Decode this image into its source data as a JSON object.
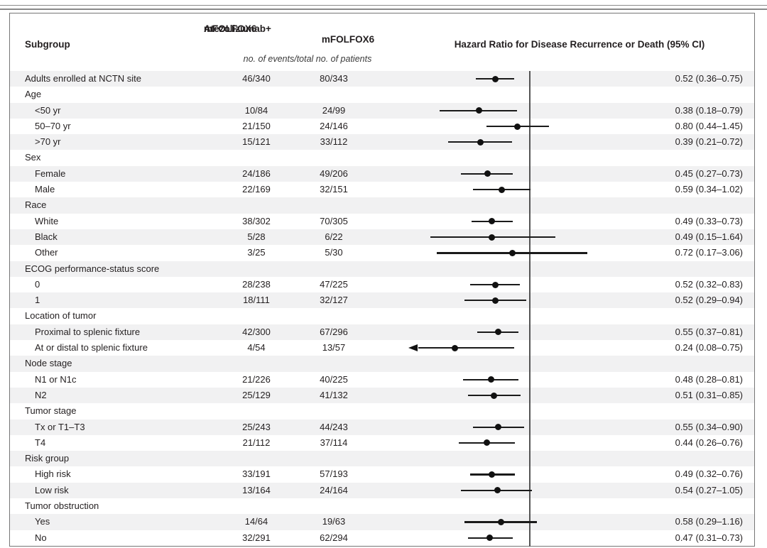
{
  "header": {
    "subgroup_label": "Subgroup",
    "arm1_label_line1": "Atezolizumab+",
    "arm1_label_line2": "mFOLFOX6",
    "arm2_label": "mFOLFOX6",
    "events_note": "no. of events/total no. of patients",
    "hr_axis_title": "Hazard Ratio for Disease Recurrence or Death (95% CI)"
  },
  "colors": {
    "row_shade": "#f1f1f2",
    "text": "#231f20",
    "marker": "#111111",
    "reference_line": "#555555",
    "frame_border": "#767676"
  },
  "chart_data": {
    "type": "forest",
    "x_scale": "log",
    "reference_line_value": 1.0,
    "arms": [
      "Atezolizumab+mFOLFOX6",
      "mFOLFOX6"
    ],
    "value_unit": "no. of events/total no. of patients",
    "effect_measure": "Hazard Ratio for Disease Recurrence or Death (95% CI)",
    "rows": [
      {
        "label": "Adults enrolled at NCTN site",
        "indent": 0,
        "group": false,
        "events_arm1": "46/340",
        "events_arm2": "80/343",
        "hr": 0.52,
        "ci_low": 0.36,
        "ci_high": 0.75,
        "hr_text": "0.52 (0.36–0.75)",
        "shaded": true,
        "clip_left_arrow": false
      },
      {
        "label": "Age",
        "indent": 0,
        "group": true,
        "shaded": false
      },
      {
        "label": "<50 yr",
        "indent": 1,
        "group": false,
        "events_arm1": "10/84",
        "events_arm2": "24/99",
        "hr": 0.38,
        "ci_low": 0.18,
        "ci_high": 0.79,
        "hr_text": "0.38 (0.18–0.79)",
        "shaded": true,
        "clip_left_arrow": false
      },
      {
        "label": "50–70 yr",
        "indent": 1,
        "group": false,
        "events_arm1": "21/150",
        "events_arm2": "24/146",
        "hr": 0.8,
        "ci_low": 0.44,
        "ci_high": 1.45,
        "hr_text": "0.80 (0.44–1.45)",
        "shaded": false,
        "clip_left_arrow": false
      },
      {
        "label": ">70 yr",
        "indent": 1,
        "group": false,
        "events_arm1": "15/121",
        "events_arm2": "33/112",
        "hr": 0.39,
        "ci_low": 0.21,
        "ci_high": 0.72,
        "hr_text": "0.39 (0.21–0.72)",
        "shaded": true,
        "clip_left_arrow": false
      },
      {
        "label": "Sex",
        "indent": 0,
        "group": true,
        "shaded": false
      },
      {
        "label": "Female",
        "indent": 1,
        "group": false,
        "events_arm1": "24/186",
        "events_arm2": "49/206",
        "hr": 0.45,
        "ci_low": 0.27,
        "ci_high": 0.73,
        "hr_text": "0.45 (0.27–0.73)",
        "shaded": true,
        "clip_left_arrow": false
      },
      {
        "label": "Male",
        "indent": 1,
        "group": false,
        "events_arm1": "22/169",
        "events_arm2": "32/151",
        "hr": 0.59,
        "ci_low": 0.34,
        "ci_high": 1.02,
        "hr_text": "0.59 (0.34–1.02)",
        "shaded": false,
        "clip_left_arrow": false
      },
      {
        "label": "Race",
        "indent": 0,
        "group": true,
        "shaded": true
      },
      {
        "label": "White",
        "indent": 1,
        "group": false,
        "events_arm1": "38/302",
        "events_arm2": "70/305",
        "hr": 0.49,
        "ci_low": 0.33,
        "ci_high": 0.73,
        "hr_text": "0.49 (0.33–0.73)",
        "shaded": false,
        "clip_left_arrow": false
      },
      {
        "label": "Black",
        "indent": 1,
        "group": false,
        "events_arm1": "5/28",
        "events_arm2": "6/22",
        "hr": 0.49,
        "ci_low": 0.15,
        "ci_high": 1.64,
        "hr_text": "0.49 (0.15–1.64)",
        "shaded": true,
        "clip_left_arrow": false
      },
      {
        "label": "Other",
        "indent": 1,
        "group": false,
        "events_arm1": "3/25",
        "events_arm2": "5/30",
        "hr": 0.72,
        "ci_low": 0.17,
        "ci_high": 3.06,
        "hr_text": "0.72 (0.17–3.06)",
        "shaded": false,
        "clip_left_arrow": false
      },
      {
        "label": "ECOG performance-status score",
        "indent": 0,
        "group": true,
        "shaded": true
      },
      {
        "label": "0",
        "indent": 1,
        "group": false,
        "events_arm1": "28/238",
        "events_arm2": "47/225",
        "hr": 0.52,
        "ci_low": 0.32,
        "ci_high": 0.83,
        "hr_text": "0.52 (0.32–0.83)",
        "shaded": false,
        "clip_left_arrow": false
      },
      {
        "label": "1",
        "indent": 1,
        "group": false,
        "events_arm1": "18/111",
        "events_arm2": "32/127",
        "hr": 0.52,
        "ci_low": 0.29,
        "ci_high": 0.94,
        "hr_text": "0.52 (0.29–0.94)",
        "shaded": true,
        "clip_left_arrow": false
      },
      {
        "label": "Location of tumor",
        "indent": 0,
        "group": true,
        "shaded": false
      },
      {
        "label": "Proximal to splenic fixture",
        "indent": 1,
        "group": false,
        "events_arm1": "42/300",
        "events_arm2": "67/296",
        "hr": 0.55,
        "ci_low": 0.37,
        "ci_high": 0.81,
        "hr_text": "0.55 (0.37–0.81)",
        "shaded": true,
        "clip_left_arrow": false
      },
      {
        "label": "At or distal to splenic fixture",
        "indent": 1,
        "group": false,
        "events_arm1": "4/54",
        "events_arm2": "13/57",
        "hr": 0.24,
        "ci_low": 0.08,
        "ci_high": 0.75,
        "hr_text": "0.24 (0.08–0.75)",
        "shaded": false,
        "clip_left_arrow": true
      },
      {
        "label": "Node stage",
        "indent": 0,
        "group": true,
        "shaded": true
      },
      {
        "label": "N1 or N1c",
        "indent": 1,
        "group": false,
        "events_arm1": "21/226",
        "events_arm2": "40/225",
        "hr": 0.48,
        "ci_low": 0.28,
        "ci_high": 0.81,
        "hr_text": "0.48 (0.28–0.81)",
        "shaded": false,
        "clip_left_arrow": false
      },
      {
        "label": "N2",
        "indent": 1,
        "group": false,
        "events_arm1": "25/129",
        "events_arm2": "41/132",
        "hr": 0.51,
        "ci_low": 0.31,
        "ci_high": 0.85,
        "hr_text": "0.51 (0.31–0.85)",
        "shaded": true,
        "clip_left_arrow": false
      },
      {
        "label": "Tumor stage",
        "indent": 0,
        "group": true,
        "shaded": false
      },
      {
        "label": "Tx or T1–T3",
        "indent": 1,
        "group": false,
        "events_arm1": "25/243",
        "events_arm2": "44/243",
        "hr": 0.55,
        "ci_low": 0.34,
        "ci_high": 0.9,
        "hr_text": "0.55 (0.34–0.90)",
        "shaded": true,
        "clip_left_arrow": false
      },
      {
        "label": "T4",
        "indent": 1,
        "group": false,
        "events_arm1": "21/112",
        "events_arm2": "37/114",
        "hr": 0.44,
        "ci_low": 0.26,
        "ci_high": 0.76,
        "hr_text": "0.44 (0.26–0.76)",
        "shaded": false,
        "clip_left_arrow": false
      },
      {
        "label": "Risk group",
        "indent": 0,
        "group": true,
        "shaded": true
      },
      {
        "label": "High risk",
        "indent": 1,
        "group": false,
        "events_arm1": "33/191",
        "events_arm2": "57/193",
        "hr": 0.49,
        "ci_low": 0.32,
        "ci_high": 0.76,
        "hr_text": "0.49 (0.32–0.76)",
        "shaded": false,
        "clip_left_arrow": false
      },
      {
        "label": "Low risk",
        "indent": 1,
        "group": false,
        "events_arm1": "13/164",
        "events_arm2": "24/164",
        "hr": 0.54,
        "ci_low": 0.27,
        "ci_high": 1.05,
        "hr_text": "0.54 (0.27–1.05)",
        "shaded": true,
        "clip_left_arrow": false
      },
      {
        "label": "Tumor obstruction",
        "indent": 0,
        "group": true,
        "shaded": false
      },
      {
        "label": "Yes",
        "indent": 1,
        "group": false,
        "events_arm1": "14/64",
        "events_arm2": "19/63",
        "hr": 0.58,
        "ci_low": 0.29,
        "ci_high": 1.16,
        "hr_text": "0.58 (0.29–1.16)",
        "shaded": true,
        "clip_left_arrow": false
      },
      {
        "label": "No",
        "indent": 1,
        "group": false,
        "events_arm1": "32/291",
        "events_arm2": "62/294",
        "hr": 0.47,
        "ci_low": 0.31,
        "ci_high": 0.73,
        "hr_text": "0.47 (0.31–0.73)",
        "shaded": false,
        "clip_left_arrow": false
      }
    ]
  }
}
